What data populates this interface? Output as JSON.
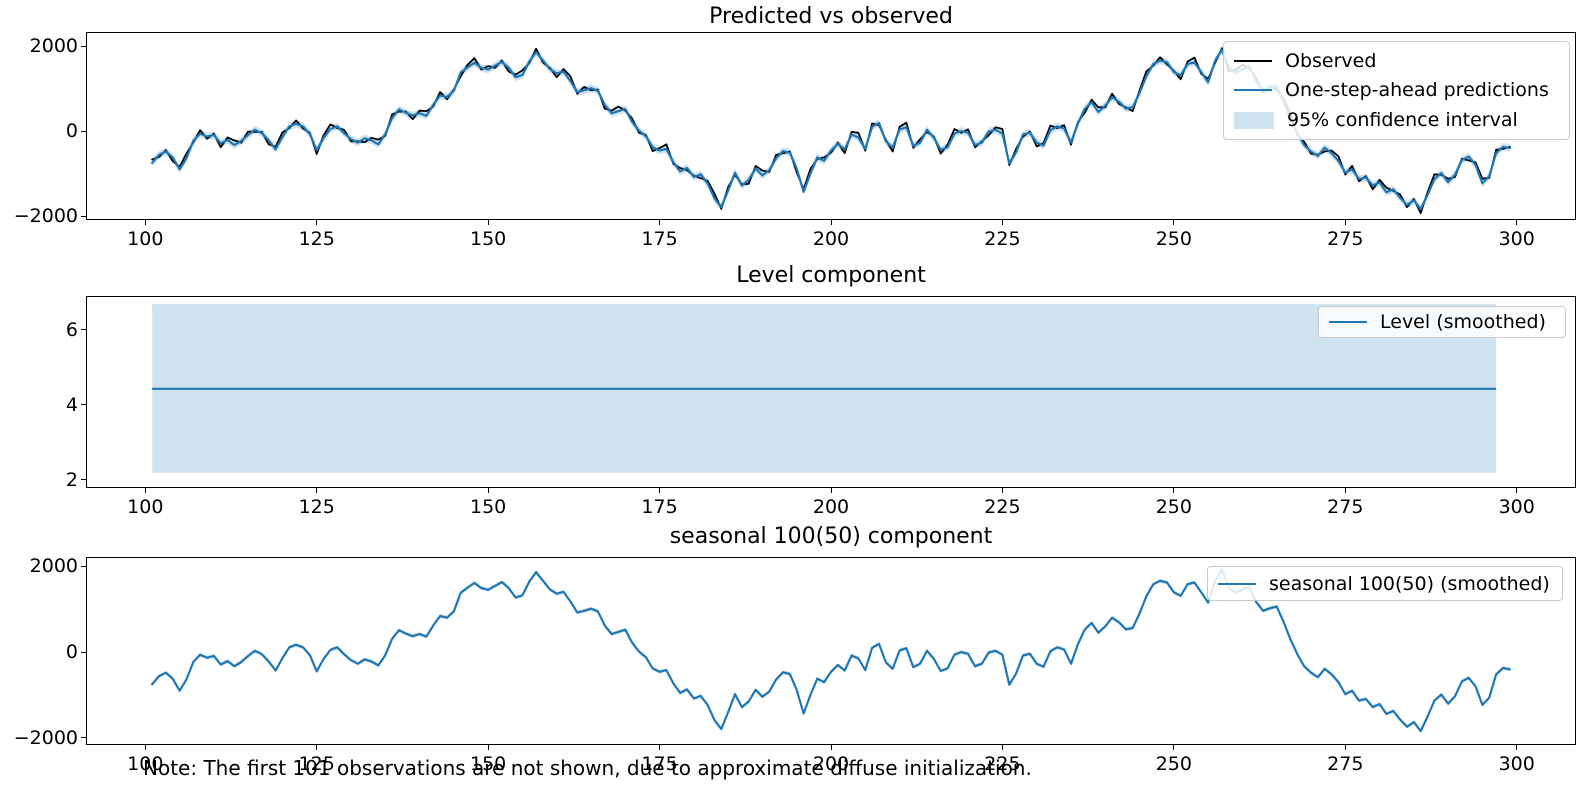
{
  "figure": {
    "note": "Note: The first 101 observations are not shown, due to approximate diffuse initialization.",
    "colors": {
      "observed": "#000000",
      "prediction": "#1f77b4",
      "confidence_band": "#cfe2f0",
      "level_line": "#1f77b4",
      "seasonal_line": "#1f77b4"
    }
  },
  "chart_data": [
    {
      "type": "line",
      "title": "Predicted vs observed",
      "x_ticks": [
        100,
        125,
        150,
        175,
        200,
        225,
        250,
        275,
        300
      ],
      "y_ticks": [
        -2000,
        0,
        2000
      ],
      "y_tick_labels": [
        "−2000",
        "0",
        "2000"
      ],
      "xlim": [
        91.5,
        308.5
      ],
      "ylim": [
        -2070,
        2310
      ],
      "x_start": 101,
      "ci_half_width": 90,
      "legend": [
        "Observed",
        "One-step-ahead predictions",
        "95% confidence interval"
      ],
      "series": [
        {
          "name": "Observed",
          "color": "#000000",
          "values_key": "observed",
          "width": 1.8
        },
        {
          "name": "One-step-ahead predictions",
          "color": "#1f77b4",
          "values_key": "predictions",
          "width": 2.2
        }
      ]
    },
    {
      "type": "line",
      "title": "Level component",
      "x_ticks": [
        100,
        125,
        150,
        175,
        200,
        225,
        250,
        275,
        300
      ],
      "y_ticks": [
        2,
        4,
        6
      ],
      "y_tick_labels": [
        "2",
        "4",
        "6"
      ],
      "xlim": [
        91.5,
        308.5
      ],
      "ylim": [
        1.81,
        6.88
      ],
      "legend": [
        "Level (smoothed)"
      ],
      "level": {
        "value": 4.43,
        "ci_lower": 2.19,
        "ci_upper": 6.69,
        "x_start": 101,
        "x_end": 297
      }
    },
    {
      "type": "line",
      "title": "seasonal 100(50) component",
      "x_ticks": [
        100,
        125,
        150,
        175,
        200,
        225,
        250,
        275,
        300
      ],
      "y_ticks": [
        -2000,
        0,
        2000
      ],
      "y_tick_labels": [
        "−2000",
        "0",
        "2000"
      ],
      "xlim": [
        91.5,
        308.5
      ],
      "ylim": [
        -2140,
        2190
      ],
      "x_start": 101,
      "ci_half_width": 45,
      "legend": [
        "seasonal 100(50) (smoothed)"
      ],
      "series": [
        {
          "name": "seasonal 100(50) (smoothed)",
          "color": "#1f77b4",
          "values_key": "predictions",
          "width": 2.2
        }
      ]
    }
  ],
  "series_data": {
    "x_start": 101,
    "observed": [
      -670,
      -610,
      -450,
      -710,
      -840,
      -530,
      -270,
      20,
      -180,
      -60,
      -380,
      -150,
      -220,
      -270,
      -10,
      -20,
      -20,
      -310,
      -370,
      -30,
      70,
      250,
      60,
      -40,
      -540,
      -100,
      160,
      70,
      30,
      -240,
      -240,
      -260,
      -160,
      -200,
      -110,
      390,
      460,
      460,
      280,
      480,
      470,
      580,
      920,
      750,
      980,
      1290,
      1560,
      1720,
      1450,
      1530,
      1490,
      1660,
      1400,
      1330,
      1430,
      1600,
      1940,
      1610,
      1490,
      1270,
      1460,
      1290,
      880,
      1040,
      960,
      980,
      530,
      480,
      580,
      480,
      300,
      -40,
      -90,
      -470,
      -400,
      -310,
      -770,
      -870,
      -920,
      -1050,
      -1110,
      -1170,
      -1470,
      -1830,
      -1320,
      -1030,
      -1250,
      -1240,
      -820,
      -930,
      -960,
      -560,
      -520,
      -480,
      -970,
      -1370,
      -890,
      -660,
      -620,
      -510,
      -270,
      -520,
      -20,
      -40,
      -460,
      180,
      140,
      -210,
      -480,
      100,
      200,
      -390,
      -190,
      -20,
      -130,
      -530,
      -320,
      50,
      -40,
      40,
      -380,
      -240,
      -100,
      90,
      50,
      -800,
      -420,
      -130,
      -10,
      -360,
      -280,
      130,
      70,
      140,
      -320,
      210,
      430,
      740,
      560,
      560,
      880,
      640,
      560,
      470,
      960,
      1410,
      1540,
      1740,
      1570,
      1420,
      1220,
      1640,
      1730,
      1350,
      1230,
      1600,
      1950,
      1410,
      1440,
      1560,
      1480,
      1250,
      910,
      1050,
      970,
      760,
      410,
      -90,
      -250,
      -530,
      -555,
      -480,
      -460,
      -590,
      -1020,
      -820,
      -1180,
      -1060,
      -1370,
      -1150,
      -1330,
      -1410,
      -1490,
      -1790,
      -1600,
      -1930,
      -1440,
      -1020,
      -1030,
      -1120,
      -1080,
      -650,
      -690,
      -740,
      -1120,
      -1100,
      -440,
      -420,
      -370
    ],
    "predictions": [
      -750,
      -560,
      -480,
      -620,
      -900,
      -640,
      -230,
      -60,
      -130,
      -90,
      -290,
      -210,
      -330,
      -230,
      -90,
      30,
      -50,
      -220,
      -430,
      -140,
      110,
      170,
      110,
      -70,
      -450,
      -160,
      50,
      110,
      -50,
      -190,
      -270,
      -170,
      -220,
      -310,
      -70,
      310,
      510,
      430,
      370,
      420,
      360,
      620,
      840,
      800,
      950,
      1380,
      1500,
      1610,
      1490,
      1450,
      1540,
      1630,
      1490,
      1270,
      1320,
      1640,
      1860,
      1660,
      1460,
      1360,
      1400,
      1180,
      920,
      960,
      1010,
      950,
      620,
      420,
      470,
      520,
      220,
      10,
      -120,
      -380,
      -460,
      -420,
      -730,
      -950,
      -870,
      -1080,
      -1020,
      -1230,
      -1580,
      -1790,
      -1400,
      -980,
      -1280,
      -1150,
      -880,
      -1040,
      -920,
      -640,
      -470,
      -510,
      -880,
      -1430,
      -1000,
      -620,
      -700,
      -460,
      -300,
      -430,
      -80,
      -150,
      -420,
      100,
      190,
      -240,
      -390,
      40,
      90,
      -350,
      -270,
      30,
      -160,
      -440,
      -380,
      -60,
      0,
      -40,
      -330,
      -270,
      -10,
      30,
      -60,
      -760,
      -500,
      -80,
      -40,
      -270,
      -340,
      20,
      110,
      60,
      -270,
      180,
      520,
      680,
      450,
      600,
      800,
      690,
      530,
      560,
      900,
      1300,
      1580,
      1660,
      1620,
      1390,
      1310,
      1580,
      1620,
      1390,
      1150,
      1650,
      1920,
      1500,
      1380,
      1450,
      1520,
      1170,
      960,
      1020,
      1060,
      700,
      300,
      -50,
      -330,
      -480,
      -585,
      -390,
      -520,
      -700,
      -980,
      -900,
      -1130,
      -1090,
      -1280,
      -1210,
      -1440,
      -1370,
      -1570,
      -1740,
      -1630,
      -1840,
      -1500,
      -1130,
      -990,
      -1200,
      -1030,
      -680,
      -600,
      -800,
      -1230,
      -1060,
      -520,
      -370,
      -400
    ]
  }
}
